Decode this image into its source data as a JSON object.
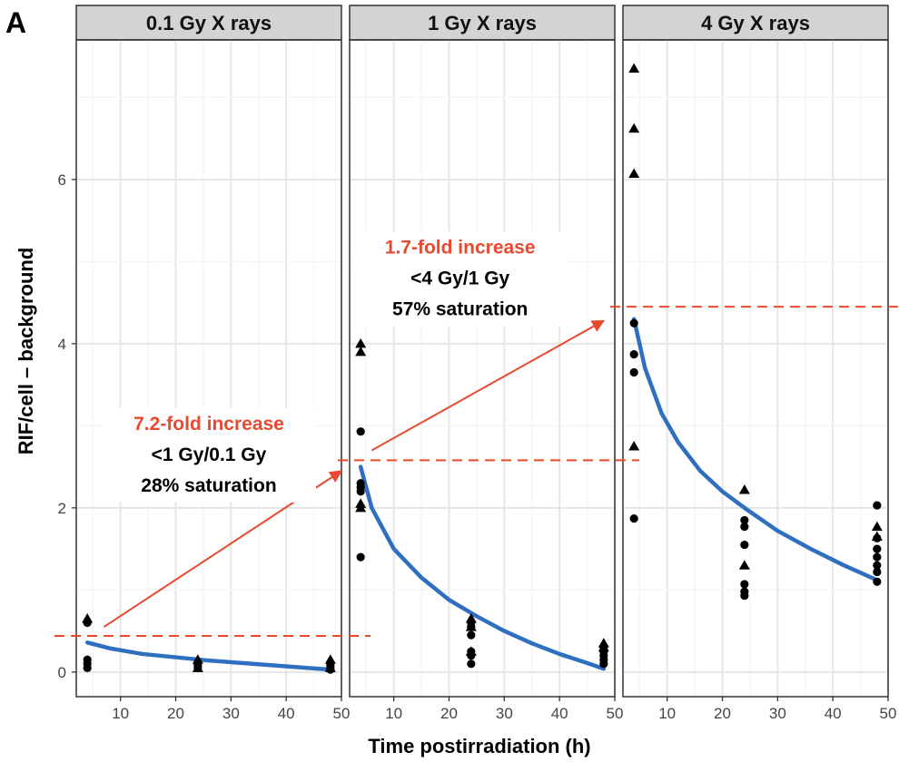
{
  "panel_tag": "A",
  "chart_data": {
    "type": "scatter",
    "xlabel": "Time postirradiation (h)",
    "ylabel": "RIF/cell – background",
    "xlim": [
      2,
      50
    ],
    "ylim": [
      -0.3,
      7.7
    ],
    "x_ticks": [
      10,
      20,
      30,
      40,
      50
    ],
    "y_ticks": [
      0,
      2,
      4,
      6
    ],
    "grid": true,
    "colors": {
      "fit": "#2f6fbf",
      "annotation": "#e8492f",
      "points": "#000000",
      "strip_bg": "#d3d3d3"
    },
    "facets": [
      {
        "title": "0.1 Gy X rays",
        "circles": [
          [
            4,
            0.6
          ],
          [
            4,
            0.15
          ],
          [
            4,
            0.1
          ],
          [
            4,
            0.05
          ],
          [
            24,
            0.08
          ],
          [
            24,
            0.05
          ],
          [
            48,
            0.08
          ],
          [
            48,
            0.05
          ],
          [
            48,
            0.03
          ]
        ],
        "triangles": [
          [
            4,
            0.65
          ],
          [
            24,
            0.15
          ],
          [
            24,
            0.05
          ],
          [
            48,
            0.15
          ],
          [
            48,
            0.05
          ]
        ],
        "fit": [
          [
            4,
            0.36
          ],
          [
            8,
            0.29
          ],
          [
            14,
            0.22
          ],
          [
            20,
            0.18
          ],
          [
            26,
            0.14
          ],
          [
            32,
            0.11
          ],
          [
            38,
            0.08
          ],
          [
            44,
            0.05
          ],
          [
            48,
            0.03
          ]
        ],
        "hline": 0.44,
        "arrow": {
          "from": [
            7,
            0.55
          ],
          "to": [
            50,
            2.45
          ]
        },
        "annotation": {
          "at": [
            26,
            2.95
          ],
          "lines": [
            "7.2-fold increase",
            "<1 Gy/0.1 Gy",
            "28% saturation"
          ]
        }
      },
      {
        "title": "1 Gy X rays",
        "circles": [
          [
            4,
            2.93
          ],
          [
            4,
            2.3
          ],
          [
            4,
            2.25
          ],
          [
            4,
            2.2
          ],
          [
            4,
            1.4
          ],
          [
            24,
            0.6
          ],
          [
            24,
            0.55
          ],
          [
            24,
            0.45
          ],
          [
            24,
            0.25
          ],
          [
            24,
            0.2
          ],
          [
            24,
            0.1
          ],
          [
            48,
            0.3
          ],
          [
            48,
            0.25
          ],
          [
            48,
            0.2
          ],
          [
            48,
            0.15
          ],
          [
            48,
            0.1
          ]
        ],
        "triangles": [
          [
            4,
            4.0
          ],
          [
            4,
            3.9
          ],
          [
            4,
            2.05
          ],
          [
            4,
            2.0
          ],
          [
            24,
            0.65
          ],
          [
            24,
            0.55
          ],
          [
            24,
            0.25
          ],
          [
            48,
            0.35
          ],
          [
            48,
            0.3
          ]
        ],
        "fit": [
          [
            4,
            2.5
          ],
          [
            6,
            2.0
          ],
          [
            10,
            1.5
          ],
          [
            15,
            1.15
          ],
          [
            20,
            0.88
          ],
          [
            25,
            0.68
          ],
          [
            30,
            0.5
          ],
          [
            35,
            0.35
          ],
          [
            40,
            0.22
          ],
          [
            45,
            0.11
          ],
          [
            48,
            0.04
          ]
        ],
        "hline": 2.58,
        "arrow": {
          "from": [
            6,
            2.7
          ],
          "to": [
            48,
            4.28
          ]
        },
        "annotation": {
          "at": [
            22,
            5.1
          ],
          "lines": [
            "1.7-fold increase",
            "<4 Gy/1 Gy",
            "57% saturation"
          ]
        }
      },
      {
        "title": "4 Gy X rays",
        "circles": [
          [
            4,
            4.25
          ],
          [
            4,
            3.87
          ],
          [
            4,
            3.65
          ],
          [
            4,
            1.87
          ],
          [
            24,
            1.85
          ],
          [
            24,
            1.77
          ],
          [
            24,
            1.55
          ],
          [
            24,
            1.07
          ],
          [
            24,
            0.98
          ],
          [
            24,
            0.93
          ],
          [
            48,
            2.03
          ],
          [
            48,
            1.63
          ],
          [
            48,
            1.5
          ],
          [
            48,
            1.4
          ],
          [
            48,
            1.3
          ],
          [
            48,
            1.22
          ],
          [
            48,
            1.1
          ]
        ],
        "triangles": [
          [
            4,
            7.35
          ],
          [
            4,
            6.62
          ],
          [
            4,
            6.07
          ],
          [
            4,
            2.75
          ],
          [
            24,
            2.22
          ],
          [
            24,
            1.3
          ],
          [
            48,
            1.77
          ],
          [
            48,
            1.65
          ]
        ],
        "fit": [
          [
            4,
            4.3
          ],
          [
            6,
            3.7
          ],
          [
            9,
            3.15
          ],
          [
            12,
            2.8
          ],
          [
            16,
            2.45
          ],
          [
            20,
            2.2
          ],
          [
            24,
            2.0
          ],
          [
            30,
            1.72
          ],
          [
            36,
            1.5
          ],
          [
            42,
            1.3
          ],
          [
            48,
            1.12
          ]
        ],
        "hline": 4.45
      }
    ]
  }
}
